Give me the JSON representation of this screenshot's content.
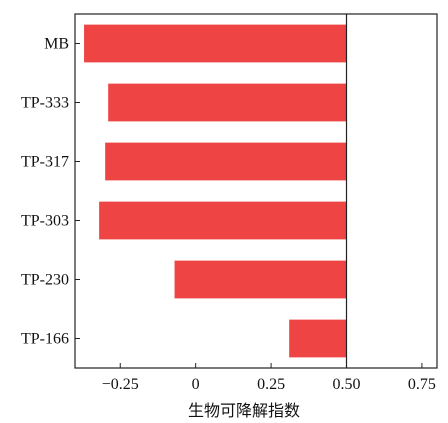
{
  "chart_data": {
    "type": "bar",
    "orientation": "horizontal",
    "title": "",
    "xlabel": "生物可降解指数",
    "ylabel": "",
    "categories": [
      "MB",
      "TP-333",
      "TP-317",
      "TP-303",
      "TP-230",
      "TP-166"
    ],
    "values": [
      -0.37,
      -0.29,
      -0.3,
      -0.32,
      -0.07,
      0.31
    ],
    "baseline": 0.5,
    "xlim": [
      -0.4,
      0.8
    ],
    "xticks": [
      -0.25,
      0,
      0.25,
      0.5,
      0.75
    ],
    "xtick_labels": [
      "−0.25",
      "0",
      "0.25",
      "0.50",
      "0.75"
    ],
    "reference_line": 0.5,
    "grid": false,
    "bar_color": "#ee4444",
    "axis_color": "#222222"
  }
}
